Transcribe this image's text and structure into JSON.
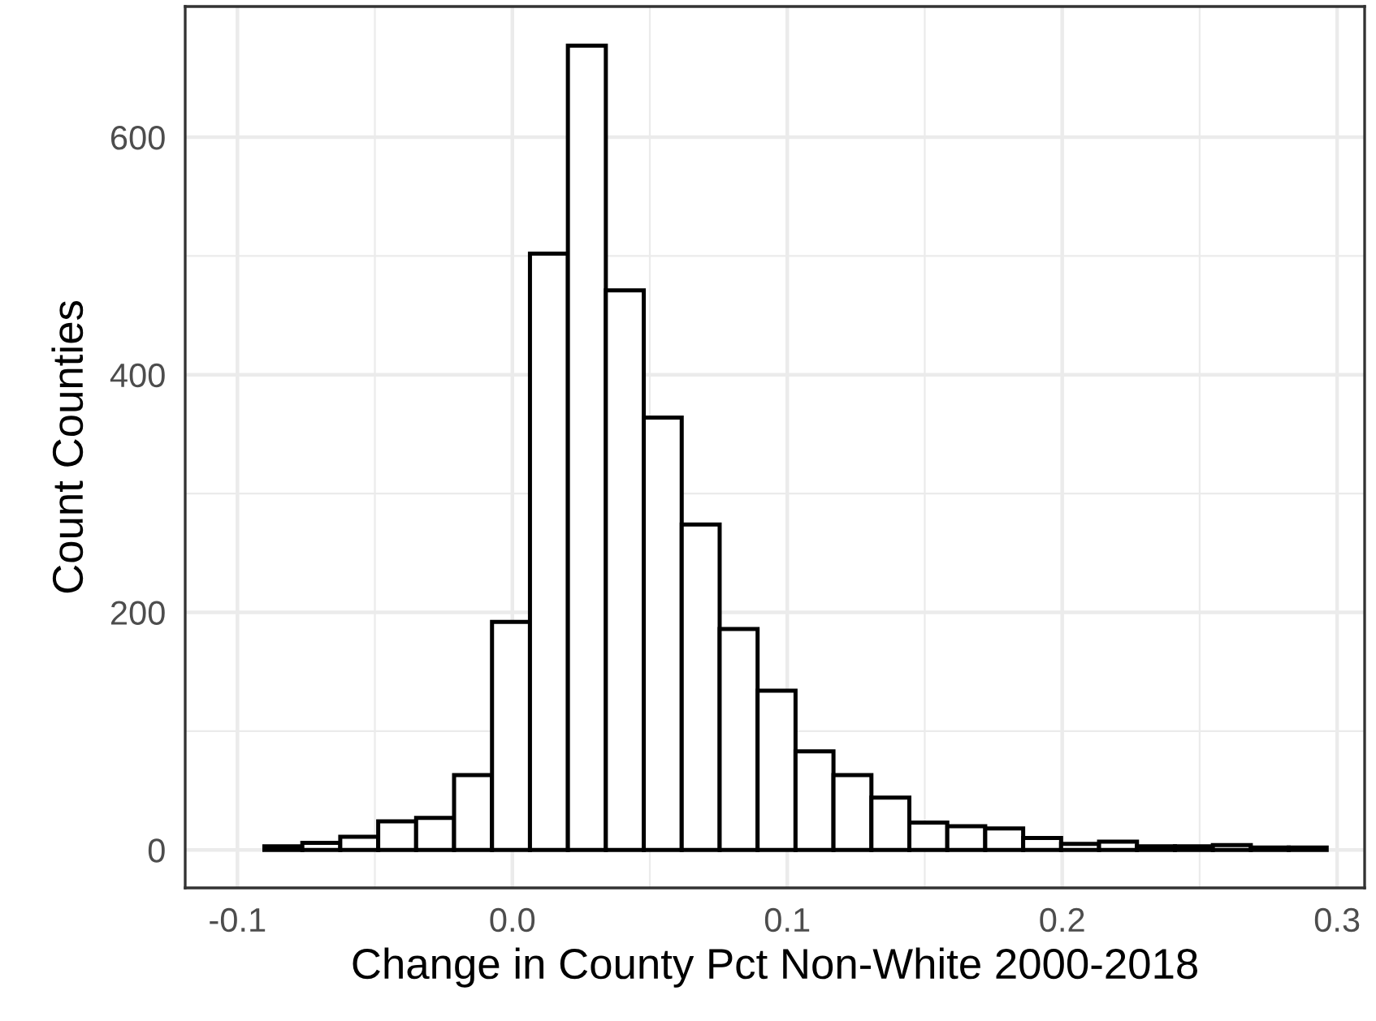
{
  "chart_data": {
    "type": "histogram",
    "xlabel": "Change in County Pct Non-White 2000-2018",
    "ylabel": "Count Counties",
    "bins": [
      -0.0902,
      -0.0764,
      -0.0626,
      -0.0488,
      -0.035,
      -0.0212,
      -0.0074,
      0.0064,
      0.0202,
      0.034,
      0.0478,
      0.0616,
      0.0754,
      0.0892,
      0.103,
      0.1168,
      0.1306,
      0.1444,
      0.1582,
      0.172,
      0.1858,
      0.1996,
      0.2134,
      0.2272,
      0.241,
      0.2548,
      0.2686,
      0.2824,
      0.2962
    ],
    "values": [
      3,
      6,
      11,
      24,
      27,
      63,
      192,
      502,
      677,
      471,
      364,
      274,
      186,
      134,
      83,
      63,
      44,
      23,
      20,
      18,
      10,
      5,
      7,
      3,
      3,
      4,
      2,
      2
    ],
    "color": "#ffffff",
    "xlim": [
      -0.119,
      0.31
    ],
    "ylim": [
      -32,
      710
    ],
    "xticks": [
      {
        "value": -0.1,
        "label": "-0.1"
      },
      {
        "value": 0.0,
        "label": "0.0"
      },
      {
        "value": 0.1,
        "label": "0.1"
      },
      {
        "value": 0.2,
        "label": "0.2"
      },
      {
        "value": 0.3,
        "label": "0.3"
      }
    ],
    "yticks": [
      0,
      200,
      400,
      600
    ],
    "grid": true
  }
}
